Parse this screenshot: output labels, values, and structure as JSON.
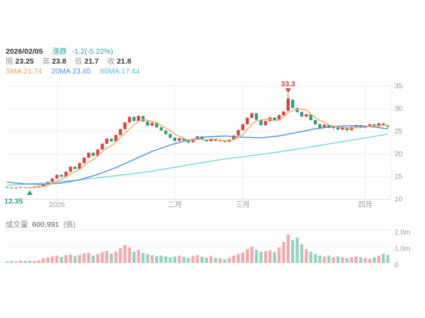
{
  "header": {
    "date": "2026/02/05",
    "change_label": "漲跌",
    "change_value": "-1.2(-5.22%)",
    "ohlc": [
      {
        "label": "開",
        "value": "23.25"
      },
      {
        "label": "高",
        "value": "23.8"
      },
      {
        "label": "低",
        "value": "21.7"
      },
      {
        "label": "收",
        "value": "21.8"
      }
    ],
    "ma_legend": [
      {
        "label": "SMA",
        "value": "21.74"
      },
      {
        "label": "20MA",
        "value": "23.65"
      },
      {
        "label": "60MA",
        "value": "17.44"
      }
    ]
  },
  "volume_header": {
    "label": "成交量",
    "value": "600,991",
    "unit": "(張)"
  },
  "colors": {
    "up": "#d64541",
    "down": "#2f9e82",
    "vol_up": "#f4a9b0",
    "vol_down": "#96d3bd",
    "ma5": "#f0ad66",
    "ma20": "#5494d2",
    "ma60": "#7fd8d6",
    "change": "#26a69a",
    "legend_sma": "#ef9d4e",
    "legend_ma20": "#4a8fd3",
    "legend_ma60": "#45c3da",
    "annotation_high": "#d64541",
    "annotation_low": "#2f9e82",
    "axis_text": "#999999",
    "grid": "#eeeeee",
    "axis_line": "#d9d9d9"
  },
  "chart_data": {
    "type": "candlestick+volume",
    "title": "",
    "price_axis": {
      "ticks": [
        10,
        15,
        20,
        25,
        30,
        35
      ],
      "range": [
        10,
        35
      ]
    },
    "volume_axis": {
      "ticks": [
        0,
        1,
        2
      ],
      "labels": [
        "0",
        "1.0m",
        "2.0m"
      ],
      "unit": "m"
    },
    "x_ticks": [
      {
        "index": 11,
        "label": "2026"
      },
      {
        "index": 37,
        "label": "二月"
      },
      {
        "index": 52,
        "label": "三月"
      },
      {
        "index": 79,
        "label": "四月"
      }
    ],
    "annotations": [
      {
        "type": "high",
        "index": 62,
        "price": 33.3,
        "label": "33.3"
      },
      {
        "type": "low",
        "index": 5,
        "price": 12.35,
        "label": "12.35"
      }
    ],
    "ma5_window": 5,
    "ma20_points": [
      [
        0,
        13.8
      ],
      [
        4,
        13.4
      ],
      [
        8,
        13.3
      ],
      [
        12,
        13.6
      ],
      [
        16,
        14.3
      ],
      [
        20,
        15.5
      ],
      [
        24,
        17.0
      ],
      [
        28,
        18.8
      ],
      [
        32,
        20.6
      ],
      [
        36,
        22.0
      ],
      [
        40,
        23.1
      ],
      [
        44,
        23.8
      ],
      [
        48,
        24.0
      ],
      [
        52,
        23.7
      ],
      [
        56,
        23.6
      ],
      [
        60,
        24.0
      ],
      [
        64,
        24.8
      ],
      [
        68,
        25.6
      ],
      [
        72,
        26.1
      ],
      [
        76,
        26.3
      ],
      [
        80,
        26.1
      ],
      [
        84,
        25.6
      ]
    ],
    "ma60_points": [
      [
        0,
        13.1
      ],
      [
        8,
        13.6
      ],
      [
        16,
        14.3
      ],
      [
        24,
        15.2
      ],
      [
        32,
        16.2
      ],
      [
        40,
        17.6
      ],
      [
        48,
        18.9
      ],
      [
        56,
        19.9
      ],
      [
        64,
        21.1
      ],
      [
        72,
        22.4
      ],
      [
        78,
        23.4
      ],
      [
        84,
        24.4
      ]
    ],
    "candles": [
      [
        12.7,
        12.75,
        12.45,
        12.6
      ],
      [
        12.6,
        12.7,
        12.4,
        12.5
      ],
      [
        12.5,
        12.65,
        12.45,
        12.55
      ],
      [
        12.55,
        12.8,
        12.5,
        12.7
      ],
      [
        12.7,
        12.75,
        12.5,
        12.6
      ],
      [
        12.6,
        12.65,
        12.35,
        12.5
      ],
      [
        12.5,
        12.9,
        12.45,
        12.8
      ],
      [
        12.8,
        13.0,
        12.7,
        12.9
      ],
      [
        12.9,
        13.5,
        12.85,
        13.4
      ],
      [
        13.4,
        14.0,
        13.3,
        13.9
      ],
      [
        13.9,
        14.7,
        13.8,
        14.6
      ],
      [
        14.6,
        15.5,
        14.5,
        15.4
      ],
      [
        15.4,
        15.45,
        14.9,
        15.0
      ],
      [
        15.0,
        16.2,
        14.95,
        16.1
      ],
      [
        16.1,
        17.3,
        16.0,
        17.2
      ],
      [
        17.2,
        17.25,
        16.6,
        16.7
      ],
      [
        16.7,
        18.1,
        16.65,
        18.0
      ],
      [
        18.0,
        19.3,
        17.9,
        19.2
      ],
      [
        19.2,
        20.4,
        19.1,
        20.3
      ],
      [
        20.3,
        20.35,
        19.5,
        19.6
      ],
      [
        19.6,
        21.1,
        19.55,
        21.0
      ],
      [
        21.0,
        22.4,
        20.9,
        22.3
      ],
      [
        22.3,
        23.5,
        22.2,
        23.4
      ],
      [
        23.4,
        23.45,
        22.7,
        22.8
      ],
      [
        22.8,
        24.3,
        22.75,
        24.2
      ],
      [
        24.2,
        25.6,
        24.1,
        25.5
      ],
      [
        25.5,
        27.1,
        25.4,
        27.0
      ],
      [
        27.0,
        28.4,
        26.9,
        28.2
      ],
      [
        28.2,
        28.3,
        27.2,
        27.3
      ],
      [
        27.3,
        28.6,
        27.2,
        28.4
      ],
      [
        28.4,
        28.45,
        27.1,
        27.2
      ],
      [
        27.2,
        27.3,
        26.2,
        26.3
      ],
      [
        26.3,
        27.0,
        26.2,
        26.9
      ],
      [
        26.9,
        26.95,
        25.8,
        25.9
      ],
      [
        25.9,
        26.0,
        25.1,
        25.2
      ],
      [
        25.2,
        25.3,
        24.3,
        24.4
      ],
      [
        24.4,
        24.5,
        23.5,
        23.6
      ],
      [
        23.6,
        23.7,
        22.8,
        22.9
      ],
      [
        22.9,
        23.6,
        22.85,
        23.5
      ],
      [
        23.5,
        23.55,
        22.9,
        23.0
      ],
      [
        23.0,
        23.1,
        22.3,
        22.6
      ],
      [
        22.6,
        23.4,
        22.55,
        23.3
      ],
      [
        23.3,
        24.0,
        23.25,
        23.9
      ],
      [
        23.9,
        23.95,
        23.1,
        23.2
      ],
      [
        23.2,
        23.3,
        22.7,
        22.8
      ],
      [
        22.8,
        23.5,
        22.75,
        23.4
      ],
      [
        23.4,
        23.45,
        22.8,
        22.9
      ],
      [
        22.9,
        23.2,
        22.7,
        23.0
      ],
      [
        23.0,
        23.05,
        22.5,
        22.7
      ],
      [
        22.7,
        23.3,
        22.65,
        23.2
      ],
      [
        23.2,
        24.2,
        23.15,
        24.1
      ],
      [
        24.1,
        25.4,
        24.0,
        25.3
      ],
      [
        25.3,
        26.7,
        25.2,
        26.6
      ],
      [
        26.6,
        28.1,
        26.5,
        28.0
      ],
      [
        28.0,
        29.2,
        27.9,
        29.0
      ],
      [
        29.0,
        29.05,
        27.5,
        27.6
      ],
      [
        27.6,
        27.7,
        26.3,
        26.4
      ],
      [
        26.4,
        27.4,
        26.3,
        27.3
      ],
      [
        27.3,
        28.2,
        27.2,
        28.1
      ],
      [
        28.1,
        28.15,
        27.4,
        27.5
      ],
      [
        27.5,
        28.7,
        27.4,
        28.6
      ],
      [
        28.6,
        29.5,
        28.5,
        29.4
      ],
      [
        29.6,
        33.3,
        29.4,
        32.3
      ],
      [
        32.0,
        32.1,
        30.1,
        30.2
      ],
      [
        30.2,
        30.3,
        29.2,
        29.3
      ],
      [
        29.3,
        29.4,
        28.2,
        28.3
      ],
      [
        28.3,
        28.9,
        28.1,
        28.8
      ],
      [
        28.8,
        28.85,
        27.4,
        27.5
      ],
      [
        27.5,
        27.6,
        26.4,
        26.6
      ],
      [
        26.6,
        26.7,
        25.5,
        25.8
      ],
      [
        25.8,
        26.6,
        25.7,
        26.5
      ],
      [
        26.5,
        26.55,
        25.7,
        25.8
      ],
      [
        25.8,
        26.3,
        25.4,
        26.2
      ],
      [
        26.2,
        26.25,
        25.3,
        25.4
      ],
      [
        25.4,
        26.0,
        25.3,
        25.9
      ],
      [
        25.9,
        25.95,
        24.9,
        25.3
      ],
      [
        25.3,
        26.1,
        25.2,
        26.0
      ],
      [
        26.0,
        26.5,
        25.9,
        26.4
      ],
      [
        26.4,
        26.45,
        25.7,
        25.8
      ],
      [
        25.8,
        26.3,
        25.7,
        26.2
      ],
      [
        26.2,
        26.7,
        26.1,
        26.6
      ],
      [
        26.6,
        26.65,
        26.0,
        26.1
      ],
      [
        26.1,
        26.9,
        26.05,
        26.8
      ],
      [
        26.8,
        26.85,
        26.2,
        26.3
      ],
      [
        26.3,
        26.4,
        25.8,
        26.1
      ]
    ],
    "volumes": [
      0.1,
      0.12,
      0.1,
      0.15,
      0.12,
      0.14,
      0.12,
      0.15,
      0.28,
      0.34,
      0.4,
      0.45,
      0.38,
      0.48,
      0.52,
      0.42,
      0.5,
      0.58,
      0.62,
      0.45,
      0.55,
      0.65,
      0.75,
      0.58,
      0.7,
      0.9,
      1.1,
      0.95,
      0.7,
      0.8,
      0.62,
      0.55,
      0.48,
      0.42,
      0.45,
      0.4,
      0.35,
      0.4,
      0.45,
      0.38,
      0.32,
      0.42,
      0.48,
      0.38,
      0.32,
      0.42,
      0.32,
      0.28,
      0.22,
      0.32,
      0.45,
      0.55,
      0.65,
      0.85,
      1.0,
      0.8,
      0.68,
      0.72,
      0.78,
      0.68,
      0.95,
      1.3,
      1.75,
      1.4,
      1.55,
      1.15,
      0.85,
      0.68,
      0.55,
      0.45,
      0.4,
      0.45,
      0.35,
      0.4,
      0.35,
      0.3,
      0.35,
      0.4,
      0.35,
      0.3,
      0.25,
      0.35,
      0.45,
      0.55,
      0.5
    ]
  }
}
